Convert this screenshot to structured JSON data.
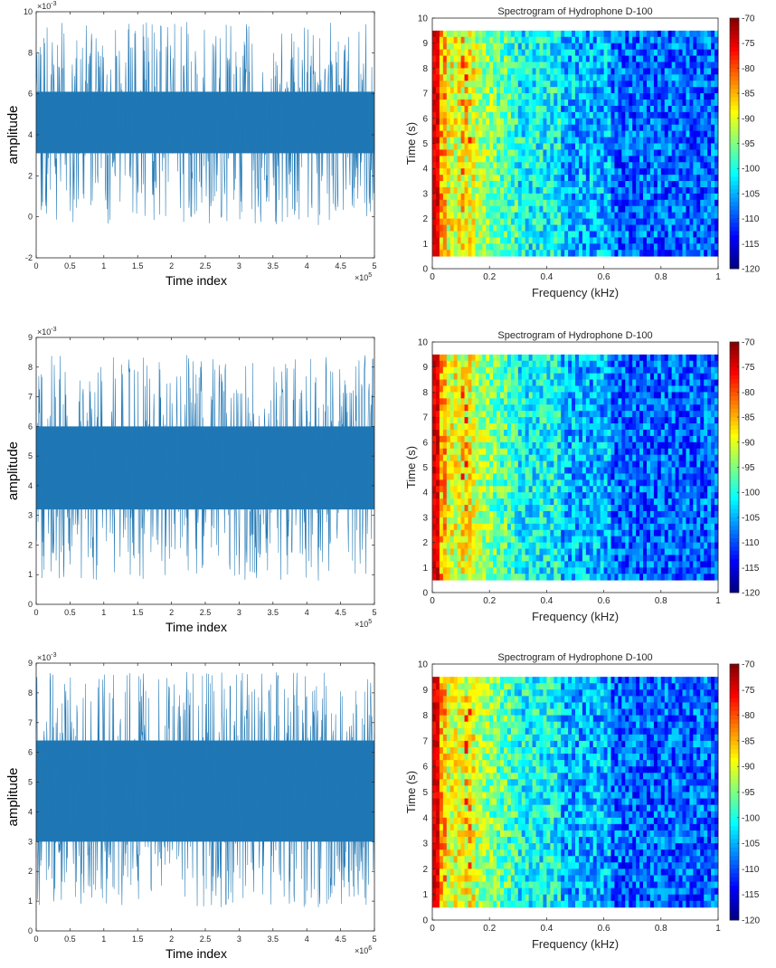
{
  "chart_data": [
    {
      "type": "line",
      "panel": "left",
      "xlabel": "Time index",
      "ylabel": "amplitude",
      "x_exponent": "×10",
      "x_exponent_power": "5",
      "y_exponent": "×10",
      "y_exponent_power": "-3",
      "xlim": [
        0,
        5
      ],
      "ylim": [
        -2,
        10
      ],
      "xticks": [
        "0",
        "0.5",
        "1",
        "1.5",
        "2",
        "2.5",
        "3",
        "3.5",
        "4",
        "4.5",
        "5"
      ],
      "yticks": [
        "-2",
        "0",
        "2",
        "4",
        "6",
        "8",
        "10"
      ],
      "signal": {
        "mean": 4.5,
        "band_low": 3.1,
        "band_high": 6.1,
        "min": -0.4,
        "max": 9.5
      },
      "line_color": "#1f77b4"
    },
    {
      "type": "line",
      "panel": "left",
      "xlabel": "Time index",
      "ylabel": "amplitude",
      "x_exponent": "×10",
      "x_exponent_power": "5",
      "y_exponent": "×10",
      "y_exponent_power": "-3",
      "xlim": [
        0,
        5
      ],
      "ylim": [
        0,
        9
      ],
      "xticks": [
        "0",
        "0.5",
        "1",
        "1.5",
        "2",
        "2.5",
        "3",
        "3.5",
        "4",
        "4.5",
        "5"
      ],
      "yticks": [
        "0",
        "1",
        "2",
        "3",
        "4",
        "5",
        "6",
        "7",
        "8",
        "9"
      ],
      "signal": {
        "mean": 4.6,
        "band_low": 3.2,
        "band_high": 6.0,
        "min": 0.8,
        "max": 8.4
      },
      "line_color": "#1f77b4"
    },
    {
      "type": "line",
      "panel": "left",
      "xlabel": "Time index",
      "ylabel": "amplitude",
      "x_exponent": "×10",
      "x_exponent_power": "6",
      "y_exponent": "×10",
      "y_exponent_power": "-3",
      "xlim": [
        0,
        5
      ],
      "ylim": [
        0,
        9
      ],
      "xticks": [
        "0",
        "0.5",
        "1",
        "1.5",
        "2",
        "2.5",
        "3",
        "3.5",
        "4",
        "4.5",
        "5"
      ],
      "yticks": [
        "0",
        "1",
        "2",
        "3",
        "4",
        "5",
        "6",
        "7",
        "8",
        "9"
      ],
      "signal": {
        "mean": 4.7,
        "band_low": 3.0,
        "band_high": 6.4,
        "min": 0.8,
        "max": 8.7
      },
      "line_color": "#1f77b4"
    },
    {
      "type": "heatmap",
      "panel": "right",
      "title": "Spectrogram of Hydrophone D-100",
      "xlabel": "Frequency (kHz)",
      "ylabel": "Time (s)",
      "xlim": [
        0,
        1
      ],
      "ylim": [
        0,
        10
      ],
      "data_time_range": [
        0.5,
        9.5
      ],
      "xticks": [
        "0",
        "0.2",
        "0.4",
        "0.6",
        "0.8",
        "1"
      ],
      "yticks": [
        "0",
        "1",
        "2",
        "3",
        "4",
        "5",
        "6",
        "7",
        "8",
        "9",
        "10"
      ],
      "colorbar_range": [
        -120,
        -70
      ],
      "colorbar_ticks": [
        "-70",
        "-75",
        "-80",
        "-85",
        "-90",
        "-95",
        "-100",
        "-105",
        "-110",
        "-115",
        "-120"
      ],
      "colormap": "jet"
    },
    {
      "type": "heatmap",
      "panel": "right",
      "title": "Spectrogram of Hydrophone D-100",
      "xlabel": "Frequency (kHz)",
      "ylabel": "Time (s)",
      "xlim": [
        0,
        1
      ],
      "ylim": [
        0,
        10
      ],
      "data_time_range": [
        0.5,
        9.5
      ],
      "xticks": [
        "0",
        "0.2",
        "0.4",
        "0.6",
        "0.8",
        "1"
      ],
      "yticks": [
        "0",
        "1",
        "2",
        "3",
        "4",
        "5",
        "6",
        "7",
        "8",
        "9",
        "10"
      ],
      "colorbar_range": [
        -120,
        -70
      ],
      "colorbar_ticks": [
        "-70",
        "-75",
        "-80",
        "-85",
        "-90",
        "-95",
        "-100",
        "-105",
        "-110",
        "-115",
        "-120"
      ],
      "colormap": "jet"
    },
    {
      "type": "heatmap",
      "panel": "right",
      "title": "Spectrogram of Hydrophone D-100",
      "xlabel": "Frequency (kHz)",
      "ylabel": "Time (s)",
      "xlim": [
        0,
        1
      ],
      "ylim": [
        0,
        10
      ],
      "data_time_range": [
        0.5,
        9.5
      ],
      "xticks": [
        "0",
        "0.2",
        "0.4",
        "0.6",
        "0.8",
        "1"
      ],
      "yticks": [
        "0",
        "1",
        "2",
        "3",
        "4",
        "5",
        "6",
        "7",
        "8",
        "9",
        "10"
      ],
      "colorbar_range": [
        -120,
        -70
      ],
      "colorbar_ticks": [
        "-70",
        "-75",
        "-80",
        "-85",
        "-90",
        "-95",
        "-100",
        "-105",
        "-110",
        "-115",
        "-120"
      ],
      "colormap": "jet"
    }
  ]
}
